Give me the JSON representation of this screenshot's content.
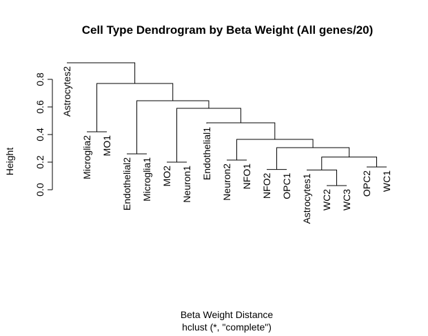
{
  "chart_data": {
    "type": "dendrogram",
    "title": "Cell Type Dendrogram by Beta Weight (All genes/20)",
    "ylabel": "Height",
    "xlabel": "Beta Weight Distance",
    "sub": "hclust (*, \"complete\")",
    "ylim": [
      0,
      0.9
    ],
    "yticks": [
      0.0,
      0.2,
      0.4,
      0.6,
      0.8
    ],
    "ytick_labels": [
      "0.0",
      "0.2",
      "0.4",
      "0.6",
      "0.8"
    ],
    "leaves": [
      {
        "label": "Astrocytes2",
        "height": 0.92
      },
      {
        "label": "Microglia2",
        "height": 0.42
      },
      {
        "label": "MO1",
        "height": 0.42
      },
      {
        "label": "Endothelial2",
        "height": 0.26
      },
      {
        "label": "Microglia1",
        "height": 0.26
      },
      {
        "label": "MO2",
        "height": 0.2
      },
      {
        "label": "Neuron1",
        "height": 0.2
      },
      {
        "label": "Endothelial1",
        "height": 0.48
      },
      {
        "label": "Neuron2",
        "height": 0.215
      },
      {
        "label": "NFO1",
        "height": 0.215
      },
      {
        "label": "NFO2",
        "height": 0.147
      },
      {
        "label": "OPC1",
        "height": 0.147
      },
      {
        "label": "Astrocytes1",
        "height": 0.143
      },
      {
        "label": "WC2",
        "height": 0.03
      },
      {
        "label": "WC3",
        "height": 0.03
      },
      {
        "label": "OPC2",
        "height": 0.165
      },
      {
        "label": "WC1",
        "height": 0.165
      }
    ],
    "merges": [
      {
        "id": "m1",
        "left": 13,
        "right": 14,
        "height": 0.03
      },
      {
        "id": "m2",
        "left": 12,
        "right": "m1",
        "height": 0.143
      },
      {
        "id": "m3",
        "left": 10,
        "right": 11,
        "height": 0.147
      },
      {
        "id": "m4",
        "left": 15,
        "right": 16,
        "height": 0.165
      },
      {
        "id": "m5",
        "left": 5,
        "right": 6,
        "height": 0.2
      },
      {
        "id": "m6",
        "left": 8,
        "right": 9,
        "height": 0.215
      },
      {
        "id": "m7",
        "left": "m2",
        "right": "m4",
        "height": 0.237
      },
      {
        "id": "m8",
        "left": 3,
        "right": 4,
        "height": 0.26
      },
      {
        "id": "m9",
        "left": "m3",
        "right": "m7",
        "height": 0.305
      },
      {
        "id": "m10",
        "left": "m6",
        "right": "m9",
        "height": 0.365
      },
      {
        "id": "m11",
        "left": 1,
        "right": 2,
        "height": 0.42
      },
      {
        "id": "m12",
        "left": 7,
        "right": "m10",
        "height": 0.485
      },
      {
        "id": "m13",
        "left": "m5",
        "right": "m12",
        "height": 0.59
      },
      {
        "id": "m14",
        "left": "m8",
        "right": "m13",
        "height": 0.645
      },
      {
        "id": "m15",
        "left": "m11",
        "right": "m14",
        "height": 0.77
      },
      {
        "id": "m16",
        "left": 0,
        "right": "m15",
        "height": 0.92
      }
    ]
  }
}
